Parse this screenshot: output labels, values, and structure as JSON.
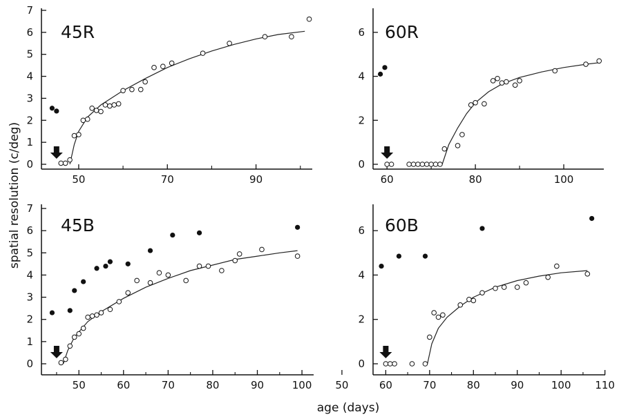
{
  "figure": {
    "ylabel": "spatial resolution (c/deg)",
    "xlabel": "age (days)"
  },
  "chart_data": [
    {
      "type": "scatter",
      "title": "45R",
      "xlabel": "age (days)",
      "ylabel": "spatial resolution (c/deg)",
      "xlim": [
        43,
        103
      ],
      "ylim": [
        0,
        7
      ],
      "xticks": [
        50,
        70,
        90
      ],
      "yticks": [
        0,
        1,
        2,
        3,
        4,
        5,
        6,
        7
      ],
      "arrow_at_x": 45,
      "filled": [
        [
          44,
          2.55
        ],
        [
          45,
          2.42
        ]
      ],
      "open": [
        [
          46,
          0.05
        ],
        [
          47,
          0.05
        ],
        [
          48,
          0.2
        ],
        [
          49,
          1.3
        ],
        [
          50,
          1.35
        ],
        [
          51,
          2.0
        ],
        [
          52,
          2.05
        ],
        [
          53,
          2.55
        ],
        [
          54,
          2.45
        ],
        [
          55,
          2.4
        ],
        [
          56,
          2.7
        ],
        [
          57,
          2.65
        ],
        [
          58,
          2.7
        ],
        [
          59,
          2.75
        ],
        [
          60,
          3.35
        ],
        [
          62,
          3.4
        ],
        [
          64,
          3.4
        ],
        [
          65,
          3.75
        ],
        [
          67,
          4.4
        ],
        [
          69,
          4.45
        ],
        [
          71,
          4.6
        ],
        [
          78,
          5.05
        ],
        [
          84,
          5.5
        ],
        [
          92,
          5.8
        ],
        [
          98,
          5.8
        ],
        [
          102,
          6.6
        ]
      ],
      "curve": [
        [
          48,
          0
        ],
        [
          49,
          0.9
        ],
        [
          50,
          1.5
        ],
        [
          52,
          2.15
        ],
        [
          55,
          2.7
        ],
        [
          60,
          3.35
        ],
        [
          65,
          3.9
        ],
        [
          70,
          4.4
        ],
        [
          75,
          4.8
        ],
        [
          80,
          5.15
        ],
        [
          85,
          5.45
        ],
        [
          90,
          5.7
        ],
        [
          95,
          5.9
        ],
        [
          101,
          6.05
        ]
      ]
    },
    {
      "type": "scatter",
      "title": "60R",
      "xlabel": "age (days)",
      "ylabel": "spatial resolution (c/deg)",
      "xlim": [
        57,
        110
      ],
      "ylim": [
        0,
        7
      ],
      "xticks": [
        60,
        80,
        100
      ],
      "yticks": [
        0,
        2,
        4,
        6
      ],
      "arrow_at_x": 60,
      "filled": [
        [
          58.5,
          4.1
        ],
        [
          59.5,
          4.4
        ]
      ],
      "open": [
        [
          60,
          0
        ],
        [
          61,
          0
        ],
        [
          65,
          0
        ],
        [
          66,
          0
        ],
        [
          67,
          0
        ],
        [
          68,
          0
        ],
        [
          69,
          0
        ],
        [
          70,
          0
        ],
        [
          71,
          0
        ],
        [
          72,
          0
        ],
        [
          73,
          0.7
        ],
        [
          76,
          0.85
        ],
        [
          77,
          1.35
        ],
        [
          79,
          2.7
        ],
        [
          80,
          2.8
        ],
        [
          82,
          2.75
        ],
        [
          84,
          3.8
        ],
        [
          85,
          3.9
        ],
        [
          86,
          3.7
        ],
        [
          87,
          3.75
        ],
        [
          89,
          3.6
        ],
        [
          90,
          3.8
        ],
        [
          98,
          4.25
        ],
        [
          105,
          4.55
        ],
        [
          108,
          4.7
        ]
      ],
      "curve": [
        [
          72.5,
          0
        ],
        [
          74,
          0.9
        ],
        [
          76,
          1.65
        ],
        [
          78,
          2.3
        ],
        [
          80,
          2.8
        ],
        [
          83,
          3.3
        ],
        [
          86,
          3.65
        ],
        [
          90,
          3.95
        ],
        [
          95,
          4.2
        ],
        [
          100,
          4.4
        ],
        [
          105,
          4.55
        ],
        [
          108,
          4.62
        ]
      ]
    },
    {
      "type": "scatter",
      "title": "45B",
      "xlabel": "age (days)",
      "ylabel": "spatial resolution (c/deg)",
      "xlim": [
        43,
        102
      ],
      "ylim": [
        0,
        7
      ],
      "xticks": [
        50,
        60,
        70,
        80,
        90,
        100
      ],
      "yticks": [
        0,
        1,
        2,
        3,
        4,
        5,
        6,
        7
      ],
      "arrow_at_x": 45,
      "filled": [
        [
          44,
          2.3
        ],
        [
          48,
          2.4
        ],
        [
          49,
          3.3
        ],
        [
          51,
          3.7
        ],
        [
          54,
          4.3
        ],
        [
          56,
          4.4
        ],
        [
          57,
          4.6
        ],
        [
          61,
          4.5
        ],
        [
          66,
          5.1
        ],
        [
          71,
          5.8
        ],
        [
          77,
          5.9
        ],
        [
          99,
          6.15
        ]
      ],
      "open": [
        [
          46,
          0.05
        ],
        [
          47,
          0.2
        ],
        [
          48,
          0.8
        ],
        [
          49,
          1.2
        ],
        [
          50,
          1.35
        ],
        [
          51,
          1.6
        ],
        [
          52,
          2.1
        ],
        [
          53,
          2.15
        ],
        [
          54,
          2.2
        ],
        [
          55,
          2.3
        ],
        [
          57,
          2.45
        ],
        [
          59,
          2.8
        ],
        [
          61,
          3.2
        ],
        [
          63,
          3.75
        ],
        [
          66,
          3.65
        ],
        [
          68,
          4.1
        ],
        [
          70,
          4.0
        ],
        [
          74,
          3.75
        ],
        [
          77,
          4.4
        ],
        [
          79,
          4.4
        ],
        [
          82,
          4.2
        ],
        [
          85,
          4.65
        ],
        [
          86,
          4.95
        ],
        [
          91,
          5.15
        ],
        [
          99,
          4.85
        ]
      ],
      "curve": [
        [
          46.5,
          0
        ],
        [
          47.5,
          0.6
        ],
        [
          49,
          1.2
        ],
        [
          52,
          1.9
        ],
        [
          55,
          2.35
        ],
        [
          60,
          2.95
        ],
        [
          65,
          3.45
        ],
        [
          70,
          3.85
        ],
        [
          75,
          4.2
        ],
        [
          80,
          4.45
        ],
        [
          85,
          4.7
        ],
        [
          90,
          4.85
        ],
        [
          95,
          5.0
        ],
        [
          99,
          5.1
        ]
      ]
    },
    {
      "type": "scatter",
      "title": "60B",
      "xlabel": "age (days)",
      "ylabel": "spatial resolution (c/deg)",
      "xlim": [
        56,
        111
      ],
      "ylim": [
        0,
        7
      ],
      "xticks": [
        50,
        60,
        70,
        80,
        90,
        100,
        110
      ],
      "yticks": [
        0,
        2,
        4,
        6
      ],
      "arrow_at_x": 60,
      "filled": [
        [
          59,
          4.4
        ],
        [
          63,
          4.85
        ],
        [
          69,
          4.85
        ],
        [
          82,
          6.1
        ],
        [
          107,
          6.55
        ]
      ],
      "open": [
        [
          60,
          0
        ],
        [
          61,
          0
        ],
        [
          62,
          0
        ],
        [
          66,
          0
        ],
        [
          69,
          0
        ],
        [
          70,
          1.2
        ],
        [
          71,
          2.3
        ],
        [
          72,
          2.1
        ],
        [
          73,
          2.2
        ],
        [
          77,
          2.65
        ],
        [
          79,
          2.9
        ],
        [
          80,
          2.85
        ],
        [
          82,
          3.2
        ],
        [
          85,
          3.4
        ],
        [
          87,
          3.45
        ],
        [
          90,
          3.45
        ],
        [
          92,
          3.65
        ],
        [
          97,
          3.9
        ],
        [
          99,
          4.4
        ],
        [
          106,
          4.05
        ]
      ],
      "curve": [
        [
          69.5,
          0
        ],
        [
          70.5,
          0.9
        ],
        [
          72,
          1.6
        ],
        [
          74,
          2.1
        ],
        [
          77,
          2.6
        ],
        [
          80,
          3.0
        ],
        [
          85,
          3.45
        ],
        [
          90,
          3.75
        ],
        [
          95,
          3.95
        ],
        [
          100,
          4.1
        ],
        [
          106,
          4.2
        ]
      ]
    }
  ]
}
